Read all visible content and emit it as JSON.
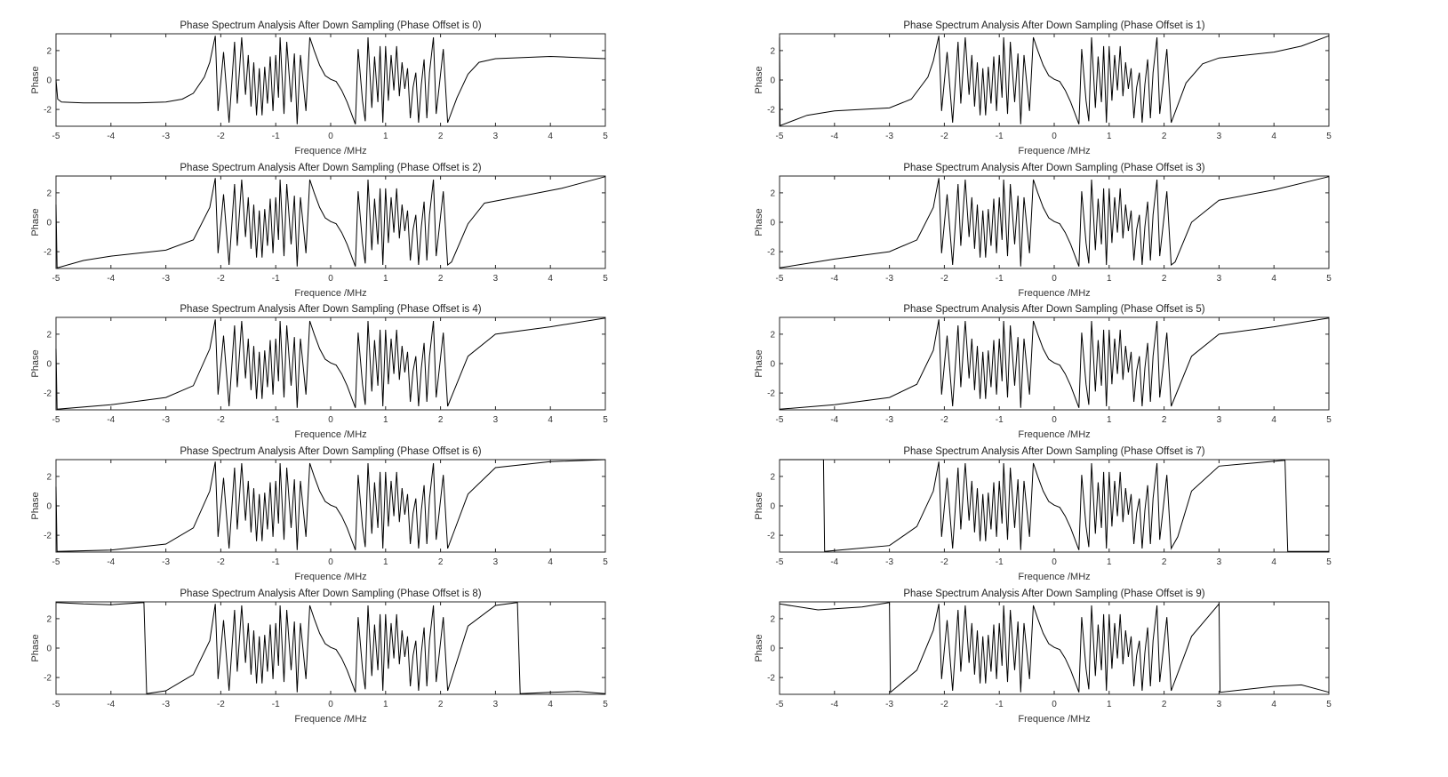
{
  "figure": {
    "background": "#ffffff",
    "line_color": "#000000",
    "axis_color": "#262626"
  },
  "common_center": [
    [
      -2.1,
      3.0
    ],
    [
      -2.05,
      -2.1
    ],
    [
      -1.95,
      1.9
    ],
    [
      -1.85,
      -2.9
    ],
    [
      -1.75,
      2.6
    ],
    [
      -1.7,
      -1.6
    ],
    [
      -1.62,
      2.9
    ],
    [
      -1.55,
      -1.0
    ],
    [
      -1.5,
      1.7
    ],
    [
      -1.45,
      -1.8
    ],
    [
      -1.4,
      1.2
    ],
    [
      -1.35,
      -2.4
    ],
    [
      -1.3,
      0.8
    ],
    [
      -1.25,
      -2.4
    ],
    [
      -1.2,
      0.9
    ],
    [
      -1.15,
      -1.6
    ],
    [
      -1.1,
      1.6
    ],
    [
      -1.05,
      -2.1
    ],
    [
      -1.0,
      1.7
    ],
    [
      -0.95,
      -1.2
    ],
    [
      -0.92,
      2.9
    ],
    [
      -0.85,
      -2.3
    ],
    [
      -0.8,
      2.6
    ],
    [
      -0.72,
      -1.5
    ],
    [
      -0.66,
      1.8
    ],
    [
      -0.61,
      -3.0
    ],
    [
      -0.55,
      1.7
    ],
    [
      -0.45,
      -2.1
    ],
    [
      -0.38,
      2.9
    ],
    [
      -0.3,
      2.0
    ],
    [
      -0.2,
      1.0
    ],
    [
      -0.1,
      0.3
    ],
    [
      0,
      0.05
    ],
    [
      0.1,
      -0.1
    ],
    [
      0.2,
      -0.7
    ],
    [
      0.3,
      -1.5
    ],
    [
      0.4,
      -2.5
    ],
    [
      0.45,
      -3.0
    ],
    [
      0.5,
      2.1
    ],
    [
      0.58,
      -1.4
    ],
    [
      0.63,
      -2.8
    ],
    [
      0.68,
      2.9
    ],
    [
      0.75,
      -1.9
    ],
    [
      0.8,
      1.6
    ],
    [
      0.86,
      -1.5
    ],
    [
      0.9,
      2.3
    ],
    [
      0.95,
      -2.9
    ],
    [
      1.0,
      2.3
    ],
    [
      1.05,
      -1.4
    ],
    [
      1.1,
      1.7
    ],
    [
      1.15,
      -0.7
    ],
    [
      1.2,
      2.3
    ],
    [
      1.25,
      -1.1
    ],
    [
      1.3,
      1.2
    ],
    [
      1.35,
      -0.6
    ],
    [
      1.4,
      0.8
    ],
    [
      1.45,
      -2.6
    ],
    [
      1.5,
      -0.5
    ],
    [
      1.55,
      0.5
    ],
    [
      1.6,
      -2.9
    ],
    [
      1.65,
      -0.3
    ],
    [
      1.7,
      1.4
    ],
    [
      1.75,
      -2.6
    ],
    [
      1.8,
      0.5
    ],
    [
      1.87,
      2.9
    ],
    [
      1.92,
      -2.3
    ],
    [
      2.05,
      2.1
    ],
    [
      2.13,
      -2.9
    ]
  ],
  "chart_data": [
    {
      "type": "line",
      "title": "Phase Spectrum Analysis After Down Sampling (Phase Offset is 0)",
      "xlabel": "Frequence /MHz",
      "ylabel": "Phase",
      "xlim": [
        -5,
        5
      ],
      "ylim": [
        -3.1416,
        3.1416
      ],
      "xticks": [
        "-5",
        "-4",
        "-3",
        "-2",
        "-1",
        "0",
        "1",
        "2",
        "3",
        "4",
        "5"
      ],
      "yticks": [
        "-2",
        "0",
        "2"
      ],
      "left": [
        [
          -5,
          0.0
        ],
        [
          -4.97,
          -1.3
        ],
        [
          -4.9,
          -1.5
        ],
        [
          -4.5,
          -1.55
        ],
        [
          -3.5,
          -1.55
        ],
        [
          -3,
          -1.5
        ],
        [
          -2.7,
          -1.3
        ],
        [
          -2.5,
          -0.9
        ],
        [
          -2.3,
          0.2
        ],
        [
          -2.2,
          1.2
        ]
      ],
      "right": [
        [
          2.3,
          -1.2
        ],
        [
          2.5,
          0.4
        ],
        [
          2.7,
          1.2
        ],
        [
          3,
          1.45
        ],
        [
          4,
          1.6
        ],
        [
          5,
          1.45
        ]
      ]
    },
    {
      "type": "line",
      "title": "Phase Spectrum Analysis After Down Sampling (Phase Offset is 1)",
      "xlabel": "Frequence /MHz",
      "ylabel": "Phase",
      "xlim": [
        -5,
        5
      ],
      "ylim": [
        -3.1416,
        3.1416
      ],
      "xticks": [
        "-5",
        "-4",
        "-3",
        "-2",
        "-1",
        "0",
        "1",
        "2",
        "3",
        "4",
        "5"
      ],
      "yticks": [
        "-2",
        "0",
        "2"
      ],
      "left": [
        [
          -5,
          2.9
        ],
        [
          -4.99,
          -3.1
        ],
        [
          -4.5,
          -2.4
        ],
        [
          -4,
          -2.1
        ],
        [
          -3,
          -1.9
        ],
        [
          -2.6,
          -1.3
        ],
        [
          -2.3,
          0.2
        ],
        [
          -2.2,
          1.3
        ]
      ],
      "right": [
        [
          2.4,
          -0.2
        ],
        [
          2.7,
          1.1
        ],
        [
          3,
          1.5
        ],
        [
          4,
          1.9
        ],
        [
          4.5,
          2.3
        ],
        [
          5,
          3.0
        ]
      ]
    },
    {
      "type": "line",
      "title": "Phase Spectrum Analysis After Down Sampling (Phase Offset is 2)",
      "xlabel": "Frequence /MHz",
      "ylabel": "Phase",
      "xlim": [
        -5,
        5
      ],
      "ylim": [
        -3.1416,
        3.1416
      ],
      "xticks": [
        "-5",
        "-4",
        "-3",
        "-2",
        "-1",
        "0",
        "1",
        "2",
        "3",
        "4",
        "5"
      ],
      "yticks": [
        "-2",
        "0",
        "2"
      ],
      "left": [
        [
          -5,
          1.2
        ],
        [
          -4.98,
          -3.1
        ],
        [
          -4.5,
          -2.6
        ],
        [
          -4,
          -2.3
        ],
        [
          -3,
          -1.9
        ],
        [
          -2.5,
          -1.2
        ],
        [
          -2.2,
          1.0
        ]
      ],
      "right": [
        [
          2.2,
          -2.7
        ],
        [
          2.5,
          -0.1
        ],
        [
          2.8,
          1.3
        ],
        [
          3.5,
          1.8
        ],
        [
          4.2,
          2.3
        ],
        [
          5,
          3.1
        ]
      ]
    },
    {
      "type": "line",
      "title": "Phase Spectrum Analysis After Down Sampling (Phase Offset is 3)",
      "xlabel": "Frequence /MHz",
      "ylabel": "Phase",
      "xlim": [
        -5,
        5
      ],
      "ylim": [
        -3.1416,
        3.1416
      ],
      "xticks": [
        "-5",
        "-4",
        "-3",
        "-2",
        "-1",
        "0",
        "1",
        "2",
        "3",
        "4",
        "5"
      ],
      "yticks": [
        "-2",
        "0",
        "2"
      ],
      "left": [
        [
          -5,
          -3.1
        ],
        [
          -4,
          -2.5
        ],
        [
          -3,
          -2.0
        ],
        [
          -2.5,
          -1.2
        ],
        [
          -2.2,
          1.0
        ]
      ],
      "right": [
        [
          2.2,
          -2.7
        ],
        [
          2.5,
          0
        ],
        [
          3,
          1.5
        ],
        [
          4,
          2.2
        ],
        [
          5,
          3.1
        ]
      ]
    },
    {
      "type": "line",
      "title": "Phase Spectrum Analysis After Down Sampling (Phase Offset is 4)",
      "xlabel": "Frequence /MHz",
      "ylabel": "Phase",
      "xlim": [
        -5,
        5
      ],
      "ylim": [
        -3.1416,
        3.1416
      ],
      "xticks": [
        "-5",
        "-4",
        "-3",
        "-2",
        "-1",
        "0",
        "1",
        "2",
        "3",
        "4",
        "5"
      ],
      "yticks": [
        "-2",
        "0",
        "2"
      ],
      "left": [
        [
          -5,
          1.0
        ],
        [
          -4.98,
          -3.1
        ],
        [
          -4,
          -2.8
        ],
        [
          -3,
          -2.3
        ],
        [
          -2.5,
          -1.5
        ],
        [
          -2.2,
          1.0
        ]
      ],
      "right": [
        [
          2.5,
          0.5
        ],
        [
          3,
          2.0
        ],
        [
          4,
          2.5
        ],
        [
          5,
          3.1
        ]
      ]
    },
    {
      "type": "line",
      "title": "Phase Spectrum Analysis After Down Sampling (Phase Offset is 5)",
      "xlabel": "Frequence /MHz",
      "ylabel": "Phase",
      "xlim": [
        -5,
        5
      ],
      "ylim": [
        -3.1416,
        3.1416
      ],
      "xticks": [
        "-5",
        "-4",
        "-3",
        "-2",
        "-1",
        "0",
        "1",
        "2",
        "3",
        "4",
        "5"
      ],
      "yticks": [
        "-2",
        "0",
        "2"
      ],
      "left": [
        [
          -5,
          -3.1
        ],
        [
          -4,
          -2.8
        ],
        [
          -3,
          -2.3
        ],
        [
          -2.5,
          -1.4
        ],
        [
          -2.2,
          0.9
        ]
      ],
      "right": [
        [
          2.5,
          0.5
        ],
        [
          3,
          2.0
        ],
        [
          4,
          2.5
        ],
        [
          5,
          3.1
        ]
      ]
    },
    {
      "type": "line",
      "title": "Phase Spectrum Analysis After Down Sampling (Phase Offset is 6)",
      "xlabel": "Frequence /MHz",
      "ylabel": "Phase",
      "xlim": [
        -5,
        5
      ],
      "ylim": [
        -3.1416,
        3.1416
      ],
      "xticks": [
        "-5",
        "-4",
        "-3",
        "-2",
        "-1",
        "0",
        "1",
        "2",
        "3",
        "4",
        "5"
      ],
      "yticks": [
        "-2",
        "0",
        "2"
      ],
      "left": [
        [
          -5,
          1.3
        ],
        [
          -4.98,
          -3.1
        ],
        [
          -4,
          -3.0
        ],
        [
          -3,
          -2.6
        ],
        [
          -2.5,
          -1.5
        ],
        [
          -2.2,
          1.0
        ]
      ],
      "right": [
        [
          2.5,
          0.8
        ],
        [
          3,
          2.6
        ],
        [
          4,
          3.0
        ],
        [
          5,
          3.14
        ]
      ]
    },
    {
      "type": "line",
      "title": "Phase Spectrum Analysis After Down Sampling (Phase Offset is 7)",
      "xlabel": "Frequence /MHz",
      "ylabel": "Phase",
      "xlim": [
        -5,
        5
      ],
      "ylim": [
        -3.1416,
        3.1416
      ],
      "xticks": [
        "-5",
        "-4",
        "-3",
        "-2",
        "-1",
        "0",
        "1",
        "2",
        "3",
        "4",
        "5"
      ],
      "yticks": [
        "-2",
        "0",
        "2"
      ],
      "left": [
        [
          -5,
          3.14
        ],
        [
          -4.2,
          3.14
        ],
        [
          -4.18,
          -3.1
        ],
        [
          -3,
          -2.7
        ],
        [
          -2.5,
          -1.4
        ],
        [
          -2.2,
          1.0
        ]
      ],
      "right": [
        [
          2.25,
          -2.1
        ],
        [
          2.5,
          1.0
        ],
        [
          3,
          2.7
        ],
        [
          4.2,
          3.1
        ],
        [
          4.25,
          -3.1
        ],
        [
          5,
          -3.1
        ]
      ]
    },
    {
      "type": "line",
      "title": "Phase Spectrum Analysis After Down Sampling (Phase Offset is 8)",
      "xlabel": "Frequence /MHz",
      "ylabel": "Phase",
      "xlim": [
        -5,
        5
      ],
      "ylim": [
        -3.1416,
        3.1416
      ],
      "xticks": [
        "-5",
        "-4",
        "-3",
        "-2",
        "-1",
        "0",
        "1",
        "2",
        "3",
        "4",
        "5"
      ],
      "yticks": [
        "-2",
        "0",
        "2"
      ],
      "left": [
        [
          -5,
          3.1
        ],
        [
          -4.5,
          3.0
        ],
        [
          -4,
          2.95
        ],
        [
          -3.4,
          3.1
        ],
        [
          -3.35,
          -3.1
        ],
        [
          -3,
          -2.9
        ],
        [
          -2.5,
          -1.8
        ],
        [
          -2.2,
          0.5
        ]
      ],
      "right": [
        [
          2.5,
          1.5
        ],
        [
          3,
          2.9
        ],
        [
          3.4,
          3.1
        ],
        [
          3.45,
          -3.1
        ],
        [
          4,
          -3.0
        ],
        [
          4.5,
          -2.95
        ],
        [
          5,
          -3.1
        ]
      ]
    },
    {
      "type": "line",
      "title": "Phase Spectrum Analysis After Down Sampling (Phase Offset is 9)",
      "xlabel": "Frequence /MHz",
      "ylabel": "Phase",
      "xlim": [
        -5,
        5
      ],
      "ylim": [
        -3.1416,
        3.1416
      ],
      "xticks": [
        "-5",
        "-4",
        "-3",
        "-2",
        "-1",
        "0",
        "1",
        "2",
        "3",
        "4",
        "5"
      ],
      "yticks": [
        "-2",
        "0",
        "2"
      ],
      "left": [
        [
          -5,
          3.0
        ],
        [
          -4.3,
          2.6
        ],
        [
          -3.5,
          2.8
        ],
        [
          -3.0,
          3.1
        ],
        [
          -2.98,
          -3.0
        ],
        [
          -2.5,
          -1.5
        ],
        [
          -2.2,
          1.2
        ]
      ],
      "right": [
        [
          2.5,
          0.8
        ],
        [
          3,
          3.0
        ],
        [
          3.02,
          -3.0
        ],
        [
          4,
          -2.6
        ],
        [
          4.5,
          -2.5
        ],
        [
          5,
          -3.0
        ]
      ]
    }
  ]
}
